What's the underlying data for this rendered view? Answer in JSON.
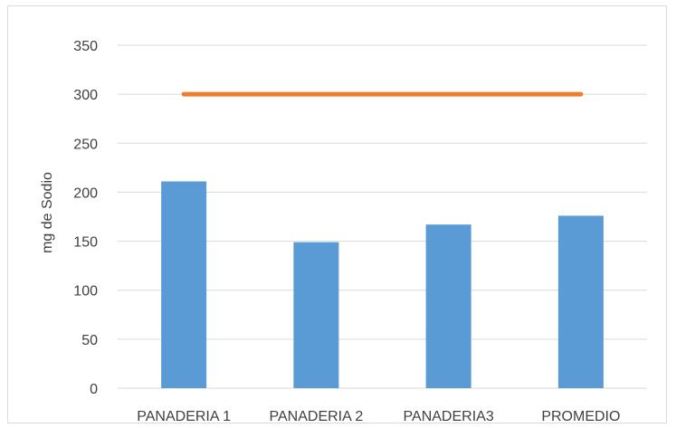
{
  "chart_data": {
    "type": "bar",
    "title": "",
    "xlabel": "",
    "ylabel": "mg de Sodio",
    "categories": [
      "PANADERIA 1",
      "PANADERIA 2",
      "PANADERIA3",
      "PROMEDIO"
    ],
    "series": [
      {
        "type": "bar",
        "values": [
          211,
          149,
          167,
          176
        ],
        "color": "#5b9bd5"
      },
      {
        "type": "line",
        "values": [
          300,
          300,
          300,
          300
        ],
        "color": "#ed7d31"
      }
    ],
    "ylim": [
      0,
      350
    ],
    "yticks": [
      0,
      50,
      100,
      150,
      200,
      250,
      300,
      350
    ],
    "grid": true,
    "legend": "none"
  }
}
